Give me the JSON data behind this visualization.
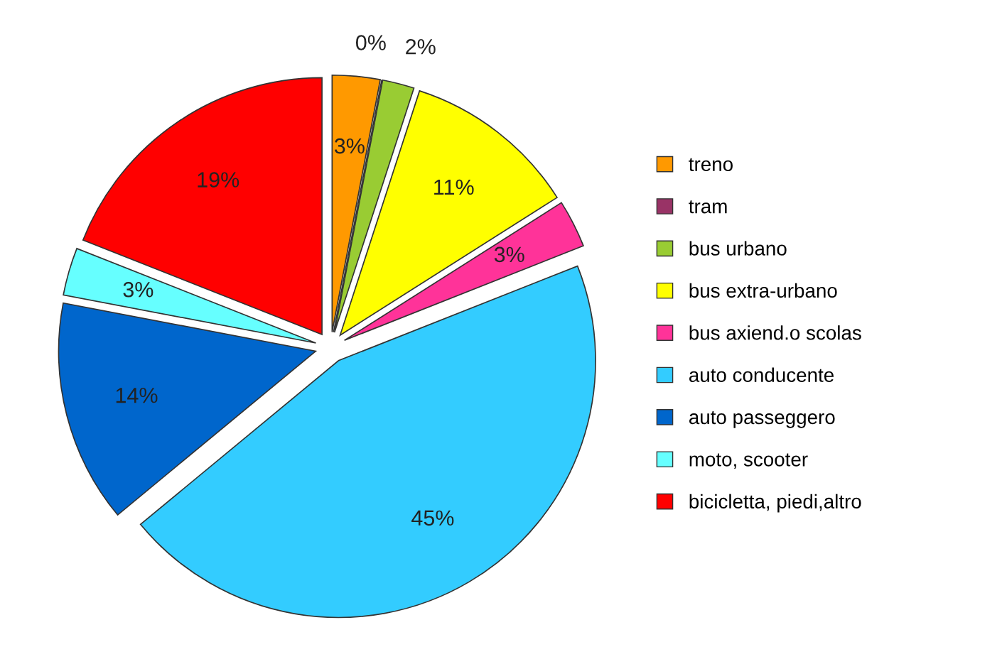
{
  "chart_data": {
    "type": "pie",
    "categories": [
      "treno",
      "tram",
      "bus urbano",
      "bus extra-urbano",
      "bus axiend.o scolas",
      "auto conducente",
      "auto passeggero",
      "moto, scooter",
      "bicicletta, piedi,altro"
    ],
    "values": [
      3,
      0,
      2,
      11,
      3,
      45,
      14,
      3,
      19
    ],
    "colors": [
      "#ff9900",
      "#993366",
      "#99cc33",
      "#ffff00",
      "#ff3399",
      "#33ccff",
      "#0066cc",
      "#66ffff",
      "#ff0000"
    ],
    "value_labels": [
      "3%",
      "0%",
      "2%",
      "11%",
      "3%",
      "45%",
      "14%",
      "3%",
      "19%"
    ],
    "legend": "right"
  }
}
